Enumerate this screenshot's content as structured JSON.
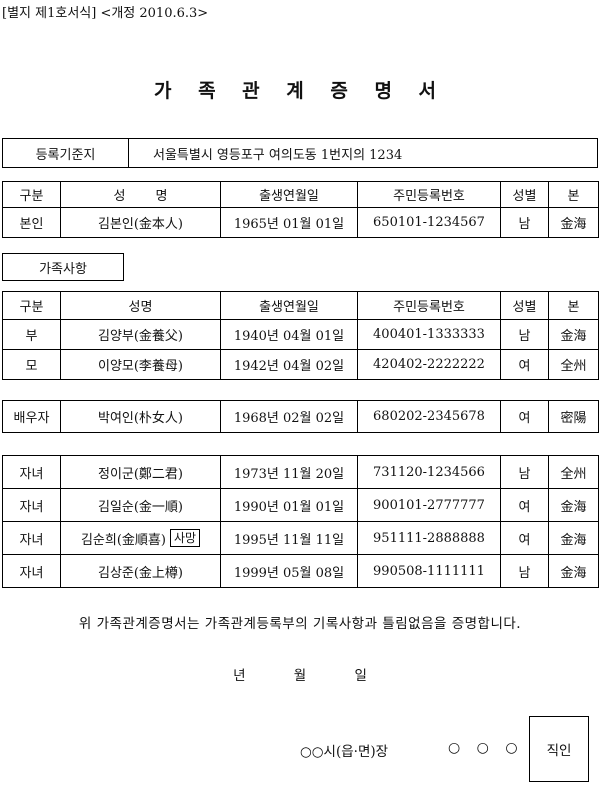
{
  "header_note": "[별지 제1호서식] <개정 2010.6.3>",
  "title": "가 족 관 계 증 명 서",
  "registration": {
    "label": "등록기준지",
    "value": "서울특별시 영등포구 여의도동 1번지의 1234"
  },
  "columns": {
    "category": "구분",
    "name_spaced": "성 명",
    "name": "성명",
    "birth": "출생연월일",
    "rrn": "주민등록번호",
    "sex": "성별",
    "origin": "본"
  },
  "self": {
    "category": "본인",
    "name": "김본인(金本人)",
    "birth": "1965년 01월 01일",
    "rrn": "650101-1234567",
    "sex": "남",
    "origin": "金海"
  },
  "family_label": "가족사항",
  "parents": [
    {
      "category": "부",
      "name": "김양부(金養父)",
      "birth": "1940년 04월 01일",
      "rrn": "400401-1333333",
      "sex": "남",
      "origin": "金海"
    },
    {
      "category": "모",
      "name": "이양모(李養母)",
      "birth": "1942년 04월 02일",
      "rrn": "420402-2222222",
      "sex": "여",
      "origin": "全州"
    }
  ],
  "spouse": {
    "category": "배우자",
    "name": "박여인(朴女人)",
    "birth": "1968년 02월 02일",
    "rrn": "680202-2345678",
    "sex": "여",
    "origin": "密陽"
  },
  "children": [
    {
      "category": "자녀",
      "name": "정이군(鄭二君)",
      "badge": "",
      "birth": "1973년 11월 20일",
      "rrn": "731120-1234566",
      "sex": "남",
      "origin": "全州"
    },
    {
      "category": "자녀",
      "name": "김일순(金一順)",
      "badge": "",
      "birth": "1990년 01월 01일",
      "rrn": "900101-2777777",
      "sex": "여",
      "origin": "金海"
    },
    {
      "category": "자녀",
      "name": "김순희(金順喜)",
      "badge": "사망",
      "birth": "1995년 11월 11일",
      "rrn": "951111-2888888",
      "sex": "여",
      "origin": "金海"
    },
    {
      "category": "자녀",
      "name": "김상준(金上樽)",
      "badge": "",
      "birth": "1999년 05월 08일",
      "rrn": "990508-1111111",
      "sex": "남",
      "origin": "金海"
    }
  ],
  "certification": "위 가족관계증명서는 가족관계등록부의 기록사항과 틀림없음을 증명합니다.",
  "date": {
    "year": "년",
    "month": "월",
    "day": "일"
  },
  "issuer": {
    "office": "○○시(읍·면)장",
    "name": "○ ○ ○",
    "seal": "직인"
  }
}
